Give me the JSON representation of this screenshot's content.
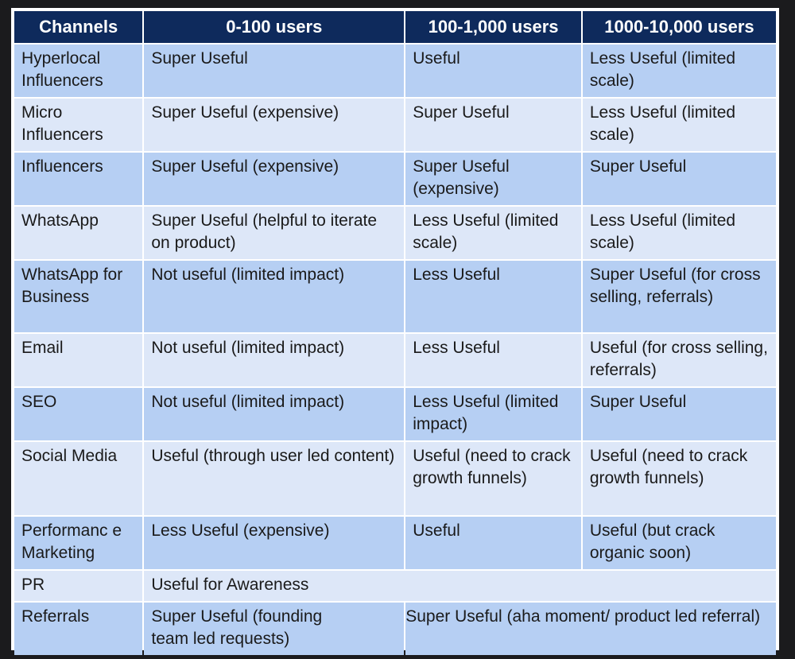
{
  "table": {
    "headers": [
      "Channels",
      "0-100 users",
      "100-1,000 users",
      "1000-10,000 users"
    ],
    "rows": [
      {
        "channel": "Hyperlocal Influencers",
        "c1": "Super Useful",
        "c2": "Useful",
        "c3": "Less Useful (limited scale)"
      },
      {
        "channel": "Micro Influencers",
        "c1": "Super Useful (expensive)",
        "c2": "Super Useful",
        "c3": "Less Useful (limited scale)"
      },
      {
        "channel": "Influencers",
        "c1": "Super Useful (expensive)",
        "c2": "Super Useful (expensive)",
        "c3": "Super Useful"
      },
      {
        "channel": "WhatsApp",
        "c1": "Super Useful (helpful to iterate on product)",
        "c2": "Less Useful (limited scale)",
        "c3": "Less Useful (limited scale)"
      },
      {
        "channel": "WhatsApp for Business",
        "c1": "Not useful (limited impact)",
        "c2": "Less Useful",
        "c3": "Super Useful (for cross selling, referrals)"
      },
      {
        "channel": "Email",
        "c1": "Not useful (limited impact)",
        "c2": "Less Useful",
        "c3": "Useful (for cross selling, referrals)"
      },
      {
        "channel": "SEO",
        "c1": "Not useful (limited impact)",
        "c2": "Less Useful (limited impact)",
        "c3": "Super Useful"
      },
      {
        "channel": "Social Media",
        "c1": "Useful (through user led content)",
        "c2": "Useful (need to crack growth funnels)",
        "c3": "Useful (need to crack growth funnels)"
      },
      {
        "channel": "Performanc e Marketing",
        "c1": "Less Useful (expensive)",
        "c2": "Useful",
        "c3": "Useful (but crack organic soon)"
      },
      {
        "channel": "PR",
        "c1": "Useful for Awareness"
      },
      {
        "channel": "Referrals",
        "c1": "Super Useful (founding team led requests)",
        "c23": "Super Useful (aha moment/ product led referral)"
      }
    ]
  }
}
